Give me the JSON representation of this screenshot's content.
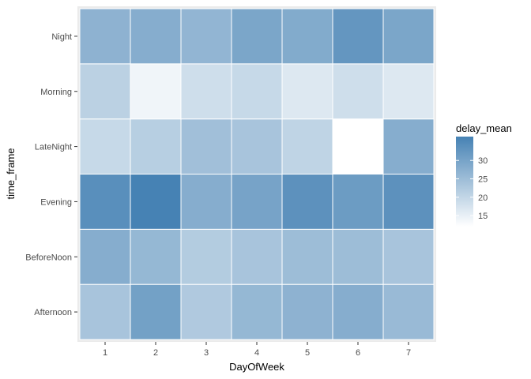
{
  "chart_data": {
    "type": "heatmap",
    "title": "",
    "xlabel": "DayOfWeek",
    "ylabel": "time_frame",
    "x_categories": [
      "1",
      "2",
      "3",
      "4",
      "5",
      "6",
      "7"
    ],
    "y_categories": [
      "Afternoon",
      "BeforeNoon",
      "Evening",
      "LateNight",
      "Morning",
      "Night"
    ],
    "values": [
      [
        23.5,
        30.5,
        22.5,
        26.0,
        27.0,
        28.0,
        25.5
      ],
      [
        28.0,
        26.0,
        22.0,
        23.5,
        25.0,
        25.0,
        23.5
      ],
      [
        34.0,
        36.5,
        28.0,
        30.0,
        33.5,
        31.5,
        33.5
      ],
      [
        19.5,
        21.5,
        24.5,
        23.5,
        20.5,
        12.0,
        28.0
      ],
      [
        21.0,
        14.0,
        18.5,
        19.5,
        16.5,
        18.5,
        16.5
      ],
      [
        27.0,
        28.0,
        26.5,
        29.5,
        28.5,
        32.5,
        29.5
      ]
    ],
    "legend": {
      "title": "delay_mean",
      "breaks": [
        "15",
        "20",
        "25",
        "30"
      ],
      "break_values": [
        15,
        20,
        25,
        30
      ],
      "range": [
        12,
        36.5
      ],
      "low_color": "#ffffff",
      "high_color": "#4682b4",
      "position": "right"
    },
    "panel_color": "#ebebeb",
    "grid": true
  }
}
